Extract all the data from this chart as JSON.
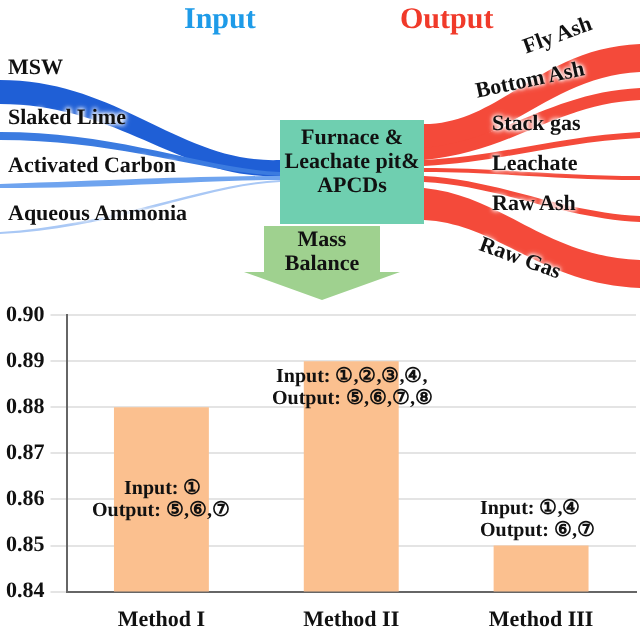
{
  "chart_data": {
    "type": "bar",
    "categories": [
      "Method I",
      "Method II",
      "Method III"
    ],
    "values": [
      0.88,
      0.89,
      0.85
    ],
    "color": "#fbc08f",
    "ylim": [
      0.84,
      0.9
    ],
    "yticks": [
      0.84,
      0.85,
      0.86,
      0.87,
      0.88,
      0.89,
      {
        "value": 0.9,
        "label": "0.90"
      }
    ],
    "grid": "y",
    "legend": false,
    "annotations": [
      "Input",
      "Output",
      "MSW",
      "Slaked Lime",
      "Activated Carbon",
      "Aqueous Ammonia",
      "Furnace & Leachate pit& APCDs",
      "Fly Ash",
      "Bottom Ash",
      "Stack gas",
      "Leachate",
      "Raw Ash",
      "Raw Gas",
      "Mass Balance",
      "Input: ①",
      "Output: ⑤,⑥,⑦",
      "Input: ①,②,③,④,",
      "Output: ⑤,⑥,⑦,⑧",
      "Input: ①,④",
      "Output: ⑥,⑦"
    ]
  }
}
